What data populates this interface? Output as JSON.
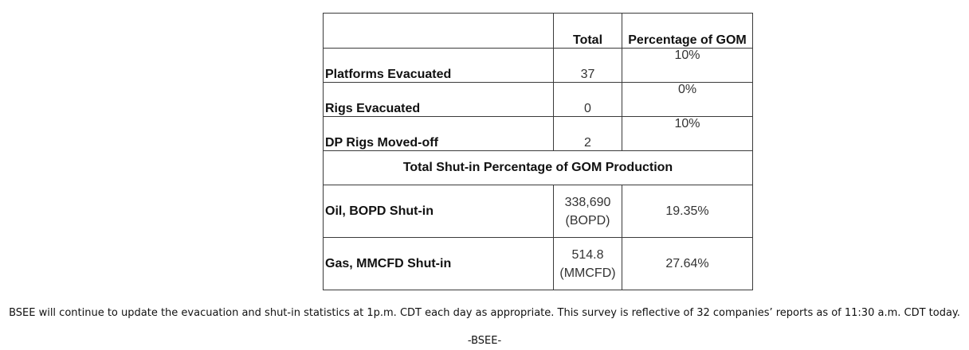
{
  "table": {
    "header": {
      "blank": "",
      "total": "Total",
      "percentage": "Percentage of GOM"
    },
    "rows": [
      {
        "label": "Platforms Evacuated",
        "total": "37",
        "percentage": "10%"
      },
      {
        "label": "Rigs Evacuated",
        "total": "0",
        "percentage": "0%"
      },
      {
        "label": "DP Rigs Moved-off",
        "total": "2",
        "percentage": "10%"
      }
    ],
    "section_title": "Total Shut-in Percentage of GOM Production",
    "production": [
      {
        "label": "Oil, BOPD Shut-in",
        "total_value": "338,690",
        "total_unit": "(BOPD)",
        "percentage": "19.35%"
      },
      {
        "label": "Gas, MMCFD Shut-in",
        "total_value": "514.8",
        "total_unit": "(MMCFD)",
        "percentage": "27.64%"
      }
    ]
  },
  "note": "BSEE will continue to update the evacuation and shut-in statistics at 1p.m. CDT each day as appropriate. This survey is reflective of 32 companies’ reports as of 11:30 a.m. CDT today.",
  "signoff": "-BSEE-"
}
